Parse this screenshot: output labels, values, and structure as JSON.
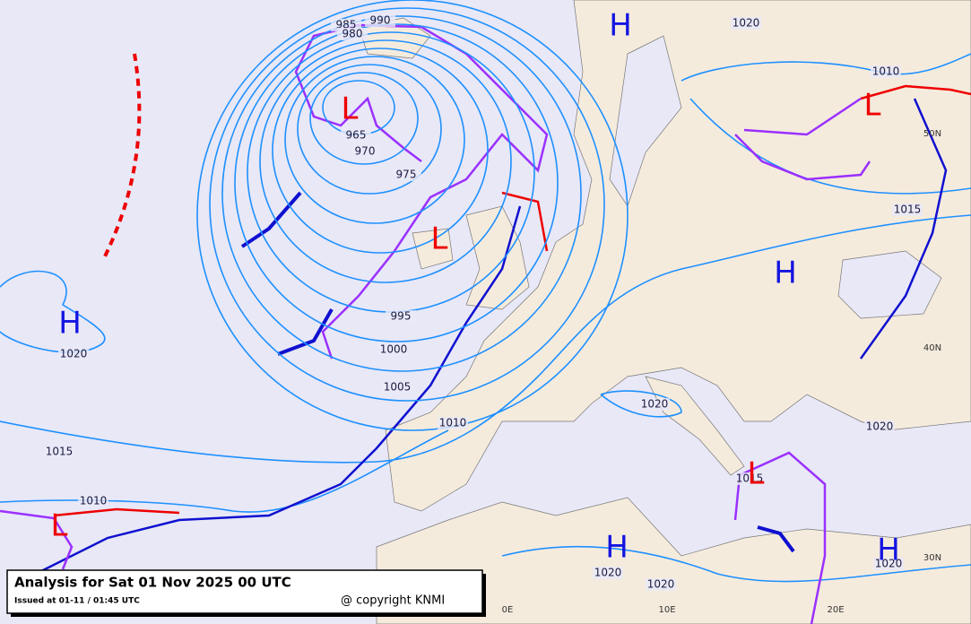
{
  "header": {
    "title": "Analysis for Sat 01 Nov 2025 00 UTC",
    "issued": "Issued at 01-11 / 01:45 UTC",
    "copyright": "@ copyright KNMI"
  },
  "centers": [
    {
      "label": "H"
    },
    {
      "label": "H"
    },
    {
      "label": "H"
    },
    {
      "label": "H"
    },
    {
      "label": "H"
    },
    {
      "label": "L"
    },
    {
      "label": "L"
    },
    {
      "label": "L"
    },
    {
      "label": "L"
    },
    {
      "label": "L"
    }
  ],
  "isobar_labels": [
    "990",
    "985",
    "980",
    "965",
    "970",
    "975",
    "995",
    "1000",
    "1005",
    "1010",
    "1015",
    "1010",
    "1020",
    "1020",
    "1010",
    "1015",
    "1020",
    "1020",
    "1015",
    "1020",
    "1020",
    "1020"
  ],
  "graticule_labels": [
    "50N",
    "40N",
    "30N",
    "0E",
    "10E",
    "20E"
  ]
}
